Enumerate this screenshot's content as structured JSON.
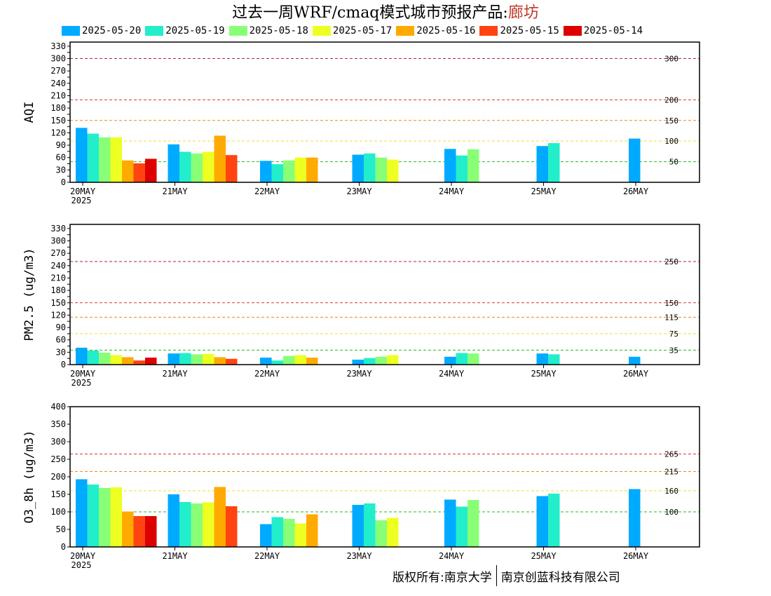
{
  "title": {
    "main": "过去一周WRF/cmaq模式城市预报产品:",
    "city": "廊坊"
  },
  "footer": {
    "left": "版权所有:南京大学",
    "right": "南京创蓝科技有限公司"
  },
  "colors": {
    "series": [
      "#00aaff",
      "#22eecc",
      "#88ff77",
      "#eeff22",
      "#ffaa00",
      "#ff4411",
      "#dd0000"
    ],
    "thresholds": {
      "green": "#22bb22",
      "yellow": "#eedd33",
      "orange": "#ee8822",
      "red": "#dd3333",
      "purple": "#aa2266"
    }
  },
  "chart_data": [
    {
      "type": "bar",
      "ylabel": "AQI",
      "ylim": [
        0,
        340
      ],
      "yticks": [
        0,
        15,
        30,
        45,
        60,
        75,
        90,
        105,
        120,
        135,
        150,
        165,
        180,
        195,
        210,
        225,
        240,
        255,
        270,
        285,
        300,
        315,
        330
      ],
      "ytick_labels": [
        "0",
        "",
        "30",
        "",
        "60",
        "",
        "90",
        "",
        "120",
        "",
        "150",
        "",
        "180",
        "",
        "210",
        "",
        "240",
        "",
        "270",
        "",
        "300",
        "",
        "330"
      ],
      "categories": [
        "20MAY",
        "21MAY",
        "22MAY",
        "23MAY",
        "24MAY",
        "25MAY",
        "26MAY"
      ],
      "first_category_sub": "2025",
      "thresholds": [
        {
          "value": 50,
          "label": "50",
          "color": "green"
        },
        {
          "value": 100,
          "label": "100",
          "color": "yellow"
        },
        {
          "value": 150,
          "label": "150",
          "color": "orange"
        },
        {
          "value": 200,
          "label": "200",
          "color": "red"
        },
        {
          "value": 300,
          "label": "300",
          "color": "purple"
        }
      ],
      "series": [
        {
          "name": "2025-05-20",
          "values": [
            132,
            92,
            52,
            67,
            81,
            88,
            106
          ]
        },
        {
          "name": "2025-05-19",
          "values": [
            118,
            74,
            44,
            70,
            65,
            95,
            null
          ]
        },
        {
          "name": "2025-05-18",
          "values": [
            109,
            70,
            53,
            60,
            80,
            null,
            null
          ]
        },
        {
          "name": "2025-05-17",
          "values": [
            109,
            74,
            60,
            55,
            null,
            null,
            null
          ]
        },
        {
          "name": "2025-05-16",
          "values": [
            53,
            113,
            60,
            null,
            null,
            null,
            null
          ]
        },
        {
          "name": "2025-05-15",
          "values": [
            46,
            66,
            null,
            null,
            null,
            null,
            null
          ]
        },
        {
          "name": "2025-05-14",
          "values": [
            57,
            null,
            null,
            null,
            null,
            null,
            null
          ]
        }
      ]
    },
    {
      "type": "bar",
      "ylabel": "PM2.5 (ug/m3)",
      "ylim": [
        0,
        340
      ],
      "yticks": [
        0,
        15,
        30,
        45,
        60,
        75,
        90,
        105,
        120,
        135,
        150,
        165,
        180,
        195,
        210,
        225,
        240,
        255,
        270,
        285,
        300,
        315,
        330
      ],
      "ytick_labels": [
        "0",
        "",
        "30",
        "",
        "60",
        "",
        "90",
        "",
        "120",
        "",
        "150",
        "",
        "180",
        "",
        "210",
        "",
        "240",
        "",
        "270",
        "",
        "300",
        "",
        "330"
      ],
      "categories": [
        "20MAY",
        "21MAY",
        "22MAY",
        "23MAY",
        "24MAY",
        "25MAY",
        "26MAY"
      ],
      "first_category_sub": "2025",
      "thresholds": [
        {
          "value": 35,
          "label": "35",
          "color": "green"
        },
        {
          "value": 75,
          "label": "75",
          "color": "yellow"
        },
        {
          "value": 115,
          "label": "115",
          "color": "orange"
        },
        {
          "value": 150,
          "label": "150",
          "color": "red"
        },
        {
          "value": 250,
          "label": "250",
          "color": "purple"
        }
      ],
      "series": [
        {
          "name": "2025-05-20",
          "values": [
            41,
            27,
            17,
            12,
            19,
            27,
            19
          ]
        },
        {
          "name": "2025-05-19",
          "values": [
            34,
            28,
            10,
            16,
            28,
            25,
            null
          ]
        },
        {
          "name": "2025-05-18",
          "values": [
            29,
            25,
            21,
            19,
            27,
            null,
            null
          ]
        },
        {
          "name": "2025-05-17",
          "values": [
            23,
            26,
            23,
            23,
            null,
            null,
            null
          ]
        },
        {
          "name": "2025-05-16",
          "values": [
            18,
            18,
            17,
            null,
            null,
            null,
            null
          ]
        },
        {
          "name": "2025-05-15",
          "values": [
            10,
            14,
            null,
            null,
            null,
            null,
            null
          ]
        },
        {
          "name": "2025-05-14",
          "values": [
            17,
            null,
            null,
            null,
            null,
            null,
            null
          ]
        }
      ]
    },
    {
      "type": "bar",
      "ylabel": "O3_8h (ug/m3)",
      "ylim": [
        0,
        400
      ],
      "yticks": [
        0,
        50,
        100,
        150,
        200,
        250,
        300,
        350,
        400
      ],
      "ytick_labels": [
        "0",
        "50",
        "100",
        "150",
        "200",
        "250",
        "300",
        "350",
        "400"
      ],
      "categories": [
        "20MAY",
        "21MAY",
        "22MAY",
        "23MAY",
        "24MAY",
        "25MAY",
        "26MAY"
      ],
      "first_category_sub": "2025",
      "thresholds": [
        {
          "value": 100,
          "label": "100",
          "color": "green"
        },
        {
          "value": 160,
          "label": "160",
          "color": "yellow"
        },
        {
          "value": 215,
          "label": "215",
          "color": "orange"
        },
        {
          "value": 265,
          "label": "265",
          "color": "red"
        }
      ],
      "series": [
        {
          "name": "2025-05-20",
          "values": [
            193,
            150,
            65,
            120,
            135,
            145,
            165
          ]
        },
        {
          "name": "2025-05-19",
          "values": [
            178,
            128,
            85,
            124,
            115,
            152,
            null
          ]
        },
        {
          "name": "2025-05-18",
          "values": [
            168,
            124,
            80,
            76,
            134,
            null,
            null
          ]
        },
        {
          "name": "2025-05-17",
          "values": [
            170,
            127,
            67,
            83,
            null,
            null,
            null
          ]
        },
        {
          "name": "2025-05-16",
          "values": [
            101,
            171,
            93,
            null,
            null,
            null,
            null
          ]
        },
        {
          "name": "2025-05-15",
          "values": [
            88,
            116,
            null,
            null,
            null,
            null,
            null
          ]
        },
        {
          "name": "2025-05-14",
          "values": [
            88,
            null,
            null,
            null,
            null,
            null,
            null
          ]
        }
      ]
    }
  ]
}
